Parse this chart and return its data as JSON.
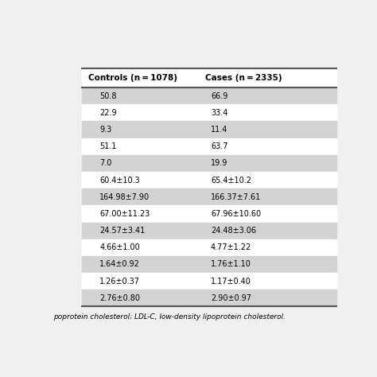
{
  "header": [
    "Controls (n = 1078)",
    "Cases (n = 2335)"
  ],
  "rows": [
    [
      "50.8",
      "66.9"
    ],
    [
      "22.9",
      "33.4"
    ],
    [
      "9.3",
      "11.4"
    ],
    [
      "51.1",
      "63.7"
    ],
    [
      "7.0",
      "19.9"
    ],
    [
      "60.4±10.3",
      "65.4±10.2"
    ],
    [
      "164.98±7.90",
      "166.37±7.61"
    ],
    [
      "67.00±11.23",
      "67.96±10.60"
    ],
    [
      "24.57±3.41",
      "24.48±3.06"
    ],
    [
      "4.66±1.00",
      "4.77±1.22"
    ],
    [
      "1.64±0.92",
      "1.76±1.10"
    ],
    [
      "1.26±0.37",
      "1.17±0.40"
    ],
    [
      "2.76±0.80",
      "2.90±0.97"
    ]
  ],
  "footer": "poprotein cholesterol; LDL-C, low-density lipoprotein cholesterol.",
  "row_bg_odd": "#d3d3d3",
  "row_bg_even": "#ffffff",
  "header_bg": "#ffffff",
  "line_color": "#555555",
  "text_color": "#000000",
  "fig_bg": "#f0f0f0",
  "table_bg": "#ffffff",
  "font_size_header": 7.5,
  "font_size_data": 7.0,
  "font_size_footer": 6.5
}
